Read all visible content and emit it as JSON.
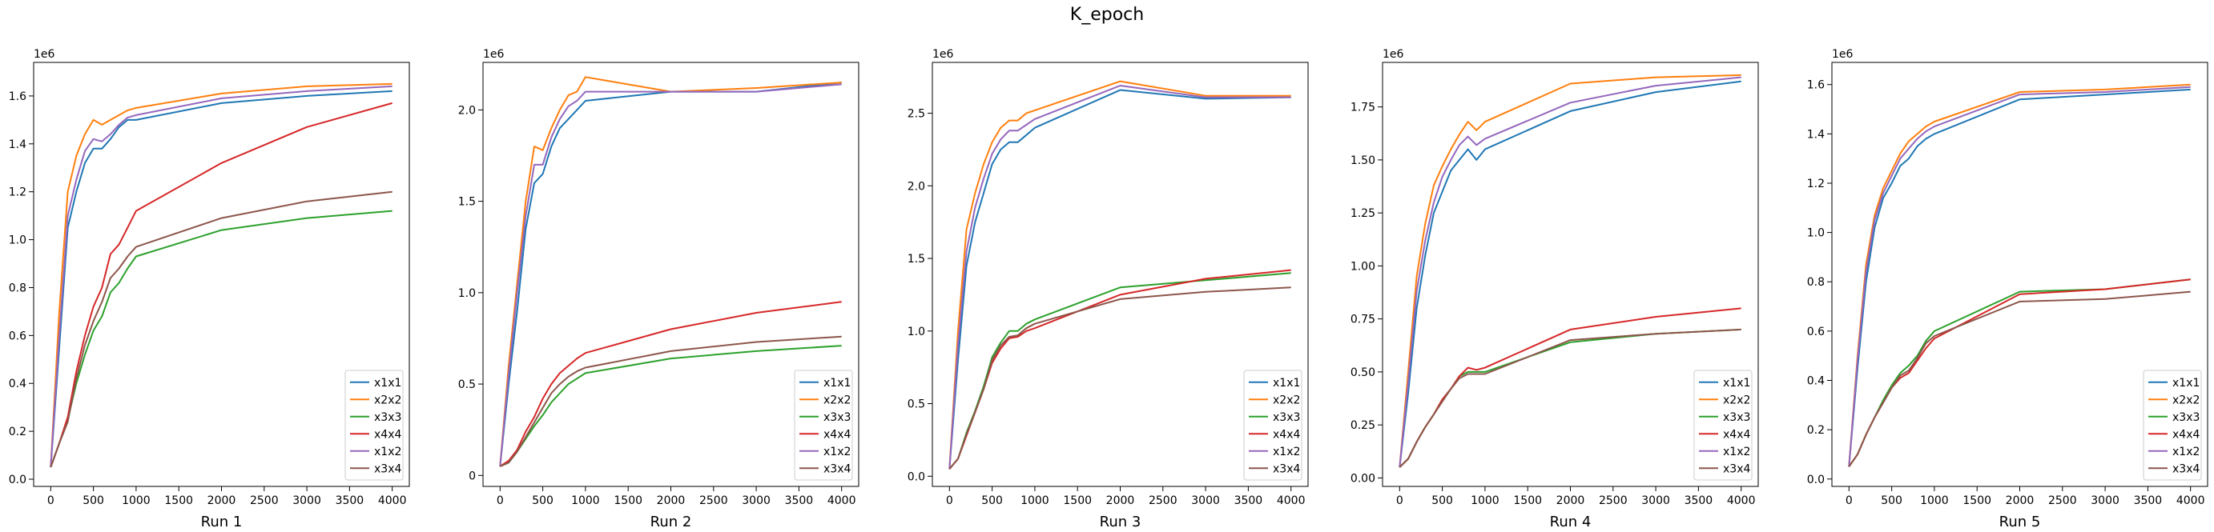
{
  "figure": {
    "title": "K_epoch"
  },
  "colors": {
    "x1x1": "#1f77b4",
    "x2x2": "#ff7f0e",
    "x3x3": "#2ca02c",
    "x4x4": "#d62728",
    "x1x2": "#9467bd",
    "x3x4": "#8c564b"
  },
  "chart_data": [
    {
      "type": "line",
      "xlabel": "Run 1",
      "scale_label": "1e6",
      "x": [
        0,
        100,
        200,
        300,
        400,
        500,
        600,
        700,
        800,
        900,
        1000,
        2000,
        3000,
        4000
      ],
      "xlim": [
        -200,
        4200
      ],
      "xticks": [
        0,
        500,
        1000,
        1500,
        2000,
        2500,
        3000,
        3500,
        4000
      ],
      "ylim": [
        -0.03,
        1.74
      ],
      "yticks": [
        0.0,
        0.2,
        0.4,
        0.6,
        0.8,
        1.0,
        1.2,
        1.4,
        1.6
      ],
      "ytick_labels": [
        "0.0",
        "0.2",
        "0.4",
        "0.6",
        "0.8",
        "1.0",
        "1.2",
        "1.4",
        "1.6"
      ],
      "legend": "lower right",
      "series": [
        {
          "name": "x1x1",
          "values": [
            0.05,
            0.55,
            1.05,
            1.2,
            1.32,
            1.38,
            1.38,
            1.42,
            1.47,
            1.5,
            1.5,
            1.57,
            1.6,
            1.62
          ]
        },
        {
          "name": "x2x2",
          "values": [
            0.05,
            0.7,
            1.2,
            1.35,
            1.44,
            1.5,
            1.48,
            1.5,
            1.52,
            1.54,
            1.55,
            1.61,
            1.64,
            1.65
          ]
        },
        {
          "name": "x3x3",
          "values": [
            0.05,
            0.15,
            0.25,
            0.4,
            0.52,
            0.62,
            0.68,
            0.78,
            0.82,
            0.88,
            0.93,
            1.04,
            1.09,
            1.12
          ]
        },
        {
          "name": "x4x4",
          "values": [
            0.05,
            0.15,
            0.26,
            0.45,
            0.6,
            0.72,
            0.8,
            0.94,
            0.98,
            1.05,
            1.12,
            1.32,
            1.47,
            1.57
          ]
        },
        {
          "name": "x1x2",
          "values": [
            0.05,
            0.6,
            1.1,
            1.25,
            1.37,
            1.42,
            1.41,
            1.44,
            1.48,
            1.51,
            1.52,
            1.59,
            1.62,
            1.64
          ]
        },
        {
          "name": "x3x4",
          "values": [
            0.05,
            0.15,
            0.24,
            0.42,
            0.56,
            0.66,
            0.74,
            0.84,
            0.88,
            0.93,
            0.97,
            1.09,
            1.16,
            1.2
          ]
        }
      ]
    },
    {
      "type": "line",
      "xlabel": "Run 2",
      "scale_label": "1e6",
      "x": [
        0,
        100,
        200,
        300,
        400,
        500,
        600,
        700,
        800,
        900,
        1000,
        2000,
        3000,
        4000
      ],
      "xlim": [
        -200,
        4200
      ],
      "xticks": [
        0,
        500,
        1000,
        1500,
        2000,
        2500,
        3000,
        3500,
        4000
      ],
      "ylim": [
        -0.06,
        2.26
      ],
      "yticks": [
        0.0,
        0.5,
        1.0,
        1.5,
        2.0
      ],
      "ytick_labels": [
        "0",
        "0.5",
        "1.0",
        "1.5",
        "2.0"
      ],
      "legend": "lower right",
      "series": [
        {
          "name": "x1x1",
          "values": [
            0.05,
            0.5,
            0.9,
            1.35,
            1.6,
            1.65,
            1.8,
            1.9,
            1.95,
            2.0,
            2.05,
            2.1,
            2.1,
            2.15
          ]
        },
        {
          "name": "x2x2",
          "values": [
            0.05,
            0.6,
            1.05,
            1.5,
            1.8,
            1.78,
            1.9,
            2.0,
            2.08,
            2.1,
            2.18,
            2.1,
            2.12,
            2.15
          ]
        },
        {
          "name": "x3x3",
          "values": [
            0.05,
            0.07,
            0.13,
            0.2,
            0.27,
            0.33,
            0.4,
            0.45,
            0.5,
            0.53,
            0.56,
            0.64,
            0.68,
            0.71
          ]
        },
        {
          "name": "x4x4",
          "values": [
            0.05,
            0.08,
            0.14,
            0.24,
            0.32,
            0.42,
            0.5,
            0.56,
            0.6,
            0.64,
            0.67,
            0.8,
            0.89,
            0.95
          ]
        },
        {
          "name": "x1x2",
          "values": [
            0.05,
            0.55,
            1.0,
            1.42,
            1.7,
            1.7,
            1.85,
            1.95,
            2.02,
            2.05,
            2.1,
            2.1,
            2.1,
            2.14
          ]
        },
        {
          "name": "x3x4",
          "values": [
            0.05,
            0.07,
            0.13,
            0.21,
            0.29,
            0.37,
            0.45,
            0.5,
            0.54,
            0.57,
            0.59,
            0.68,
            0.73,
            0.76
          ]
        }
      ]
    },
    {
      "type": "line",
      "xlabel": "Run 3",
      "scale_label": "1e6",
      "x": [
        0,
        100,
        200,
        300,
        400,
        500,
        600,
        700,
        800,
        900,
        1000,
        2000,
        3000,
        4000
      ],
      "xlim": [
        -200,
        4200
      ],
      "xticks": [
        0,
        500,
        1000,
        1500,
        2000,
        2500,
        3000,
        3500,
        4000
      ],
      "ylim": [
        -0.07,
        2.85
      ],
      "yticks": [
        0.0,
        0.5,
        1.0,
        1.5,
        2.0,
        2.5
      ],
      "ytick_labels": [
        "0.0",
        "0.5",
        "1.0",
        "1.5",
        "2.0",
        "2.5"
      ],
      "legend": "lower right",
      "series": [
        {
          "name": "x1x1",
          "values": [
            0.05,
            0.8,
            1.45,
            1.75,
            1.95,
            2.15,
            2.25,
            2.3,
            2.3,
            2.35,
            2.4,
            2.66,
            2.6,
            2.61
          ]
        },
        {
          "name": "x2x2",
          "values": [
            0.05,
            1.0,
            1.7,
            1.95,
            2.15,
            2.3,
            2.4,
            2.45,
            2.45,
            2.5,
            2.52,
            2.72,
            2.62,
            2.62
          ]
        },
        {
          "name": "x3x3",
          "values": [
            0.05,
            0.12,
            0.3,
            0.45,
            0.62,
            0.82,
            0.92,
            1.0,
            1.0,
            1.05,
            1.08,
            1.3,
            1.35,
            1.4
          ]
        },
        {
          "name": "x4x4",
          "values": [
            0.05,
            0.12,
            0.28,
            0.44,
            0.6,
            0.78,
            0.88,
            0.95,
            0.96,
            1.0,
            1.02,
            1.25,
            1.36,
            1.42
          ]
        },
        {
          "name": "x1x2",
          "values": [
            0.05,
            0.9,
            1.55,
            1.85,
            2.05,
            2.22,
            2.32,
            2.38,
            2.38,
            2.42,
            2.46,
            2.69,
            2.61,
            2.61
          ]
        },
        {
          "name": "x3x4",
          "values": [
            0.05,
            0.12,
            0.29,
            0.44,
            0.6,
            0.8,
            0.9,
            0.96,
            0.97,
            1.02,
            1.05,
            1.22,
            1.27,
            1.3
          ]
        }
      ]
    },
    {
      "type": "line",
      "xlabel": "Run 4",
      "scale_label": "1e6",
      "x": [
        0,
        100,
        200,
        300,
        400,
        500,
        600,
        700,
        800,
        900,
        1000,
        2000,
        3000,
        4000
      ],
      "xlim": [
        -200,
        4200
      ],
      "xticks": [
        0,
        500,
        1000,
        1500,
        2000,
        2500,
        3000,
        3500,
        4000
      ],
      "ylim": [
        -0.04,
        1.96
      ],
      "yticks": [
        0.0,
        0.25,
        0.5,
        0.75,
        1.0,
        1.25,
        1.5,
        1.75
      ],
      "ytick_labels": [
        "0.00",
        "0.25",
        "0.50",
        "0.75",
        "1.00",
        "1.25",
        "1.50",
        "1.75"
      ],
      "legend": "lower right",
      "series": [
        {
          "name": "x1x1",
          "values": [
            0.05,
            0.4,
            0.8,
            1.05,
            1.25,
            1.35,
            1.45,
            1.5,
            1.55,
            1.5,
            1.55,
            1.73,
            1.82,
            1.87
          ]
        },
        {
          "name": "x2x2",
          "values": [
            0.05,
            0.5,
            0.95,
            1.2,
            1.38,
            1.47,
            1.55,
            1.62,
            1.68,
            1.64,
            1.68,
            1.86,
            1.89,
            1.9
          ]
        },
        {
          "name": "x3x3",
          "values": [
            0.05,
            0.09,
            0.17,
            0.24,
            0.3,
            0.37,
            0.42,
            0.48,
            0.5,
            0.5,
            0.5,
            0.64,
            0.68,
            0.7
          ]
        },
        {
          "name": "x4x4",
          "values": [
            0.05,
            0.09,
            0.17,
            0.24,
            0.3,
            0.37,
            0.42,
            0.48,
            0.52,
            0.51,
            0.52,
            0.7,
            0.76,
            0.8
          ]
        },
        {
          "name": "x1x2",
          "values": [
            0.05,
            0.45,
            0.88,
            1.12,
            1.3,
            1.42,
            1.5,
            1.57,
            1.61,
            1.57,
            1.6,
            1.77,
            1.85,
            1.89
          ]
        },
        {
          "name": "x3x4",
          "values": [
            0.05,
            0.09,
            0.17,
            0.24,
            0.3,
            0.36,
            0.42,
            0.47,
            0.49,
            0.49,
            0.49,
            0.65,
            0.68,
            0.7
          ]
        }
      ]
    },
    {
      "type": "line",
      "xlabel": "Run 5",
      "scale_label": "1e6",
      "x": [
        0,
        100,
        200,
        300,
        400,
        500,
        600,
        700,
        800,
        900,
        1000,
        2000,
        3000,
        4000
      ],
      "xlim": [
        -200,
        4200
      ],
      "xticks": [
        0,
        500,
        1000,
        1500,
        2000,
        2500,
        3000,
        3500,
        4000
      ],
      "ylim": [
        -0.03,
        1.69
      ],
      "yticks": [
        0.0,
        0.2,
        0.4,
        0.6,
        0.8,
        1.0,
        1.2,
        1.4,
        1.6
      ],
      "ytick_labels": [
        "0.0",
        "0.2",
        "0.4",
        "0.6",
        "0.8",
        "1.0",
        "1.2",
        "1.4",
        "1.6"
      ],
      "legend": "lower right",
      "series": [
        {
          "name": "x1x1",
          "values": [
            0.05,
            0.45,
            0.8,
            1.02,
            1.14,
            1.2,
            1.27,
            1.3,
            1.35,
            1.38,
            1.4,
            1.54,
            1.56,
            1.58
          ]
        },
        {
          "name": "x2x2",
          "values": [
            0.05,
            0.5,
            0.87,
            1.07,
            1.18,
            1.25,
            1.32,
            1.37,
            1.4,
            1.43,
            1.45,
            1.57,
            1.58,
            1.6
          ]
        },
        {
          "name": "x3x3",
          "values": [
            0.05,
            0.1,
            0.18,
            0.25,
            0.32,
            0.38,
            0.43,
            0.46,
            0.5,
            0.56,
            0.6,
            0.76,
            0.77,
            0.81
          ]
        },
        {
          "name": "x4x4",
          "values": [
            0.05,
            0.1,
            0.18,
            0.25,
            0.31,
            0.37,
            0.41,
            0.43,
            0.48,
            0.53,
            0.57,
            0.75,
            0.77,
            0.81
          ]
        },
        {
          "name": "x1x2",
          "values": [
            0.05,
            0.48,
            0.84,
            1.05,
            1.16,
            1.23,
            1.3,
            1.34,
            1.38,
            1.41,
            1.43,
            1.56,
            1.57,
            1.59
          ]
        },
        {
          "name": "x3x4",
          "values": [
            0.05,
            0.1,
            0.18,
            0.25,
            0.31,
            0.37,
            0.42,
            0.44,
            0.49,
            0.55,
            0.58,
            0.72,
            0.73,
            0.76
          ]
        }
      ]
    }
  ]
}
